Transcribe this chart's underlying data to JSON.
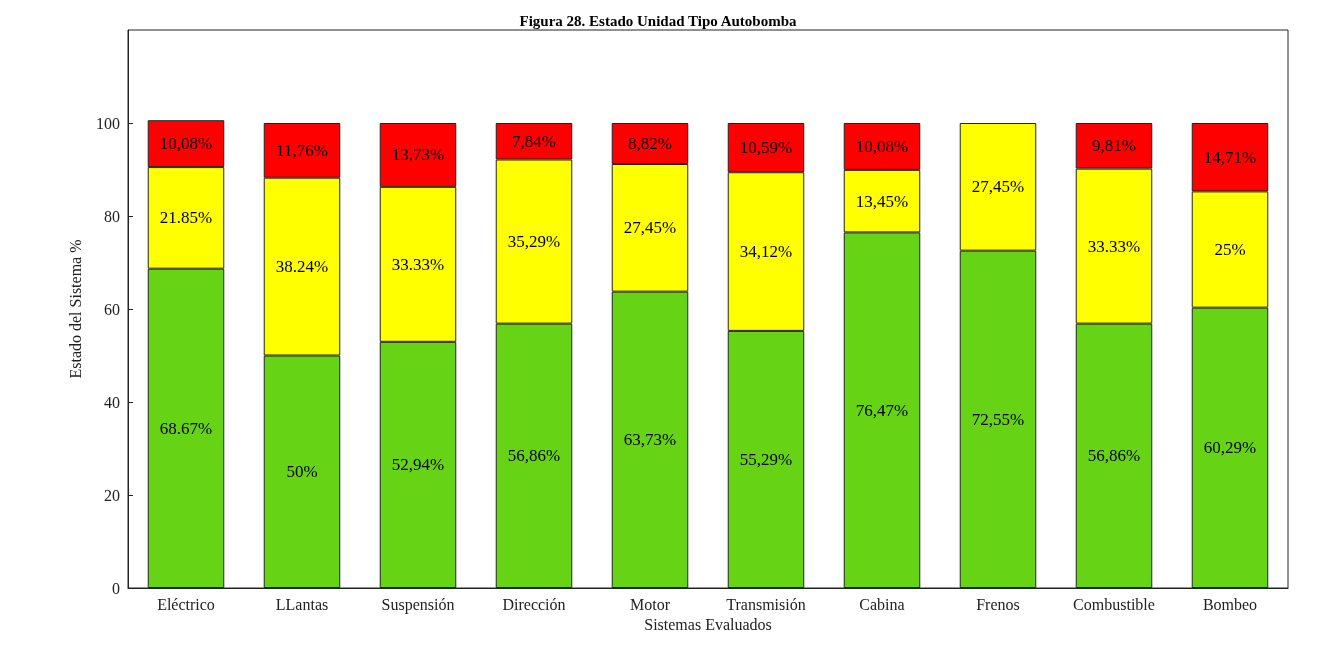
{
  "chart_data": {
    "type": "bar",
    "stacked": true,
    "title": "Figura 28. Estado Unidad Tipo Autobomba",
    "xlabel": "Sistemas Evaluados",
    "ylabel": "Estado del Sistema %",
    "categories": [
      "Eléctrico",
      "LLantas",
      "Suspensión",
      "Dirección",
      "Motor",
      "Transmisión",
      "Cabina",
      "Frenos",
      "Combustible",
      "Bombeo"
    ],
    "series": [
      {
        "color": "#66d314",
        "values": [
          68.67,
          50,
          52.94,
          56.86,
          63.73,
          55.29,
          76.47,
          72.55,
          56.86,
          60.29
        ],
        "value_labels": [
          "68.67%",
          "50%",
          "52,94%",
          "56,86%",
          "63,73%",
          "55,29%",
          "76,47%",
          "72,55%",
          "56,86%",
          "60,29%"
        ]
      },
      {
        "color": "#ffff00",
        "values": [
          21.85,
          38.24,
          33.33,
          35.29,
          27.45,
          34.12,
          13.45,
          27.45,
          33.33,
          25
        ],
        "value_labels": [
          "21.85%",
          "38.24%",
          "33.33%",
          "35,29%",
          "27,45%",
          "34,12%",
          "13,45%",
          "27,45%",
          "33.33%",
          "25%"
        ]
      },
      {
        "color": "#ff0000",
        "values": [
          10.08,
          11.76,
          13.73,
          7.84,
          8.82,
          10.59,
          10.08,
          null,
          9.81,
          14.71
        ],
        "value_labels": [
          "10,08%",
          "11,76%",
          "13,73%",
          "7,84%",
          "8,82%",
          "10,59%",
          "10,08%",
          null,
          "9,81%",
          "14,71%"
        ]
      }
    ],
    "ylim": [
      0,
      120
    ],
    "yticks": [
      0,
      20,
      40,
      60,
      80,
      100
    ],
    "grid": false
  }
}
